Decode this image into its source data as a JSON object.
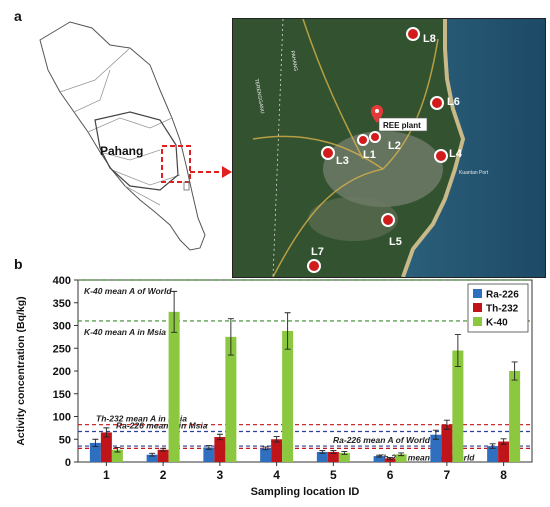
{
  "panels": {
    "a": "a",
    "b": "b"
  },
  "map": {
    "region_label": "Pahang",
    "road_labels": [
      "TERENGGANU",
      "PAHANG"
    ],
    "plant_label": "REE plant",
    "locations": [
      "L8",
      "L6",
      "L1",
      "L2",
      "L3",
      "L4",
      "L5",
      "L7"
    ],
    "sea_label": "Kuantan Port"
  },
  "chart_data": {
    "type": "bar",
    "xlabel": "Sampling location ID",
    "ylabel": "Activity concentration (Bq/kg)",
    "ylim": [
      0,
      400
    ],
    "yticks": [
      "0",
      "50",
      "100",
      "150",
      "200",
      "250",
      "300",
      "350",
      "400"
    ],
    "categories": [
      "1",
      "2",
      "3",
      "4",
      "5",
      "6",
      "7",
      "8"
    ],
    "legend_position": "top-right",
    "series": [
      {
        "name": "Ra-226",
        "color": "#2f6fbf",
        "values": [
          42,
          16,
          32,
          30,
          22,
          13,
          60,
          35
        ],
        "errors": [
          8,
          3,
          4,
          3,
          3,
          2,
          10,
          5
        ]
      },
      {
        "name": "Th-232",
        "color": "#c0141b",
        "values": [
          65,
          27,
          55,
          50,
          22,
          8,
          82,
          45
        ],
        "errors": [
          10,
          3,
          6,
          6,
          3,
          2,
          10,
          6
        ]
      },
      {
        "name": "K-40",
        "color": "#8bc83f",
        "values": [
          27,
          330,
          275,
          288,
          20,
          17,
          245,
          200
        ],
        "errors": [
          5,
          45,
          40,
          40,
          3,
          3,
          35,
          20
        ]
      }
    ],
    "reference_lines": [
      {
        "label": "K-40 mean A  of World",
        "value": 400,
        "color": "#3a8a2a"
      },
      {
        "label": "K-40 mean A in Msia",
        "value": 310,
        "color": "#3a8a2a"
      },
      {
        "label": "Th-232 mean A in Msia",
        "value": 82,
        "color": "#c0141b"
      },
      {
        "label": "Ra-226 mean A in Msia",
        "value": 67,
        "color": "#2f3f9f"
      },
      {
        "label": "Ra-226 mean A of World",
        "value": 35,
        "color": "#2f3f9f"
      },
      {
        "label": "Th-232 mean A of World",
        "value": 30,
        "color": "#c0141b"
      }
    ]
  }
}
